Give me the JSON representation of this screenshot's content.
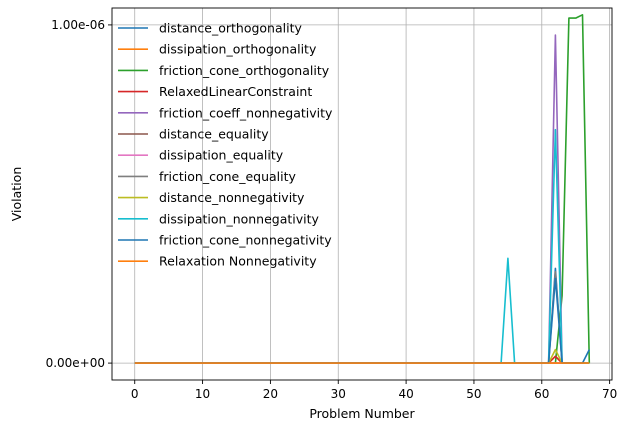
{
  "chart_data": {
    "type": "line",
    "title": "",
    "xlabel": "Problem Number",
    "ylabel": "Violation",
    "xlim": [
      -3.35,
      70.35
    ],
    "ylim": [
      -5e-08,
      1.05e-06
    ],
    "xticks": [
      0,
      10,
      20,
      30,
      40,
      50,
      60,
      70
    ],
    "xtick_labels": [
      "0",
      "10",
      "20",
      "30",
      "40",
      "50",
      "60",
      "70"
    ],
    "yticks": [
      0,
      1e-06
    ],
    "ytick_labels": [
      "0.00e+00",
      "1.00e-06"
    ],
    "grid": true,
    "legend_position": "top-left",
    "series": [
      {
        "name": "distance_orthogonality",
        "color": "#1f77b4",
        "points": [
          [
            0,
            0
          ],
          [
            61,
            0
          ],
          [
            62,
            2.8e-07
          ],
          [
            63,
            0
          ],
          [
            67,
            0
          ]
        ]
      },
      {
        "name": "dissipation_orthogonality",
        "color": "#ff7f0e",
        "points": [
          [
            0,
            0
          ],
          [
            61,
            0
          ],
          [
            62,
            2e-08
          ],
          [
            63,
            0
          ],
          [
            67,
            0
          ]
        ]
      },
      {
        "name": "friction_cone_orthogonality",
        "color": "#2ca02c",
        "points": [
          [
            0,
            0
          ],
          [
            62,
            0
          ],
          [
            63,
            2e-07
          ],
          [
            64,
            1.02e-06
          ],
          [
            65,
            1.02e-06
          ],
          [
            66,
            1.03e-06
          ],
          [
            67,
            0
          ]
        ]
      },
      {
        "name": "RelaxedLinearConstraint",
        "color": "#d62728",
        "points": [
          [
            0,
            0
          ],
          [
            61,
            0
          ],
          [
            62,
            2e-08
          ],
          [
            63,
            0
          ],
          [
            67,
            0
          ]
        ]
      },
      {
        "name": "friction_coeff_nonnegativity",
        "color": "#9467bd",
        "points": [
          [
            0,
            0
          ],
          [
            61,
            0
          ],
          [
            62,
            9.7e-07
          ],
          [
            63,
            0
          ],
          [
            67,
            0
          ]
        ]
      },
      {
        "name": "distance_equality",
        "color": "#8c564b",
        "points": [
          [
            0,
            0
          ],
          [
            67,
            0
          ]
        ]
      },
      {
        "name": "dissipation_equality",
        "color": "#e377c2",
        "points": [
          [
            0,
            0
          ],
          [
            67,
            0
          ]
        ]
      },
      {
        "name": "friction_cone_equality",
        "color": "#7f7f7f",
        "points": [
          [
            0,
            0
          ],
          [
            61,
            0
          ],
          [
            62,
            2.7e-07
          ],
          [
            63,
            0
          ],
          [
            67,
            0
          ]
        ]
      },
      {
        "name": "distance_nonnegativity",
        "color": "#bcbd22",
        "points": [
          [
            0,
            0
          ],
          [
            61,
            0
          ],
          [
            62,
            4e-08
          ],
          [
            63,
            0
          ],
          [
            67,
            0
          ]
        ]
      },
      {
        "name": "dissipation_nonnegativity",
        "color": "#17becf",
        "points": [
          [
            0,
            0
          ],
          [
            54,
            0
          ],
          [
            55,
            3.1e-07
          ],
          [
            56,
            0
          ],
          [
            61,
            0
          ],
          [
            62,
            6.9e-07
          ],
          [
            63,
            0
          ],
          [
            67,
            0
          ]
        ]
      },
      {
        "name": "friction_cone_nonnegativity",
        "color": "#1f77b4",
        "points": [
          [
            0,
            0
          ],
          [
            61,
            0
          ],
          [
            62,
            2.5e-07
          ],
          [
            63,
            0
          ],
          [
            66,
            0
          ],
          [
            67,
            4e-08
          ]
        ]
      },
      {
        "name": "Relaxation Nonnegativity",
        "color": "#ff7f0e",
        "points": [
          [
            0,
            0
          ],
          [
            67,
            0
          ]
        ]
      }
    ]
  }
}
